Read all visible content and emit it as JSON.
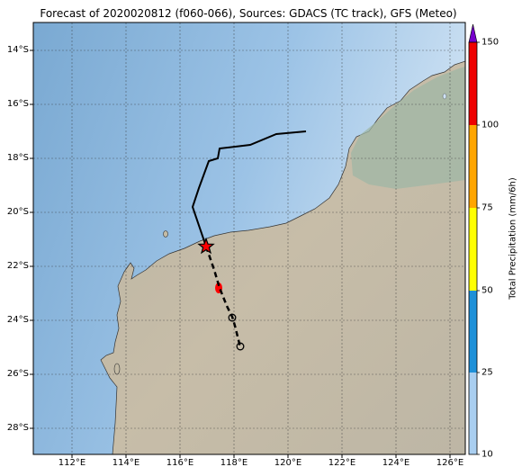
{
  "title": "Forecast of 2020020812 (f060-066), Sources: GDACS (TC track), GFS (Meteo)",
  "map": {
    "lat_labels": [
      "14°S",
      "16°S",
      "18°S",
      "20°S",
      "22°S",
      "24°S",
      "26°S",
      "28°S"
    ],
    "lon_labels": [
      "112°E",
      "114°E",
      "116°E",
      "118°E",
      "120°E",
      "122°E",
      "124°E",
      "126°E"
    ],
    "ocean_color": "#7fb0d8",
    "land_color": "#c4bba5",
    "highland_color": "#9fb7a6",
    "rain_color": "#ff0000",
    "observed_track_color": "#000000",
    "current_position_marker": "star-icon",
    "forecast_position_marker": "circle-icon"
  },
  "colorbar": {
    "title": "Total Precipitation (mm/6h)",
    "ticks": [
      "10",
      "25",
      "50",
      "75",
      "100",
      "150"
    ],
    "colors": [
      "#a9cef0",
      "#1e90d8",
      "#ffff00",
      "#ffa500",
      "#ee0000",
      "#7700cc"
    ]
  }
}
